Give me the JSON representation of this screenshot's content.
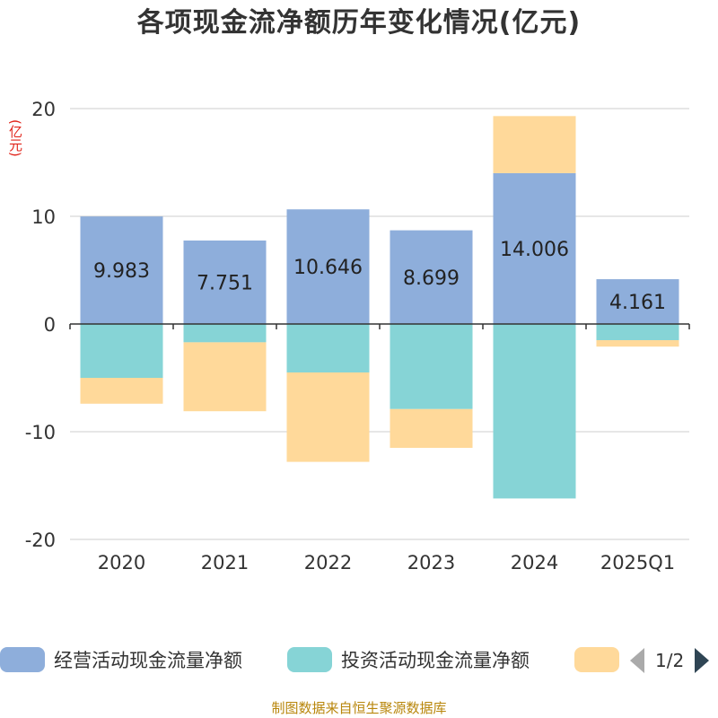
{
  "title": "各项现金流净额历年变化情况(亿元)",
  "unit_label": "(亿元)",
  "footer": "制图数据来自恒生聚源数据库",
  "legend": {
    "items": [
      {
        "label": "经营活动现金流量净额",
        "color": "#8eaedb"
      },
      {
        "label": "投资活动现金流量净额",
        "color": "#86d4d6"
      },
      {
        "label": "",
        "color": "#ffd99a"
      }
    ],
    "page": "1/2"
  },
  "chart_data": {
    "type": "bar",
    "stacked": true,
    "title": "各项现金流净额历年变化情况(亿元)",
    "ylabel": "(亿元)",
    "ylim": [
      -20,
      20
    ],
    "yticks": [
      20,
      10,
      0,
      -10,
      -20
    ],
    "categories": [
      "2020",
      "2021",
      "2022",
      "2023",
      "2024",
      "2025Q1"
    ],
    "series": [
      {
        "name": "经营活动现金流量净额",
        "color": "#8eaedb",
        "values": [
          9.983,
          7.751,
          10.646,
          8.699,
          14.006,
          4.161
        ],
        "labels": [
          "9.983",
          "7.751",
          "10.646",
          "8.699",
          "14.006",
          "4.161"
        ]
      },
      {
        "name": "投资活动现金流量净额",
        "color": "#86d4d6",
        "values": [
          -5.0,
          -1.7,
          -4.5,
          -7.9,
          -16.2,
          -1.5
        ]
      },
      {
        "name": "",
        "color": "#ffd99a",
        "values": [
          -2.4,
          -6.4,
          -8.3,
          -3.6,
          5.3,
          -0.6
        ]
      }
    ]
  }
}
